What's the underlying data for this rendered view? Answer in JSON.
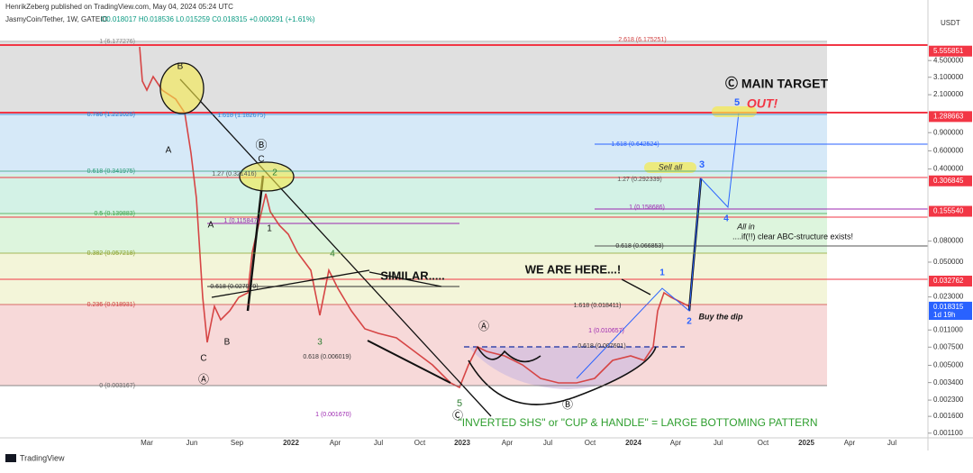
{
  "header": {
    "publisher": "HenrikZeberg published on TradingView.com, May 04, 2024 05:24 UTC",
    "symbol": "JasmyCoin/Tether, 1W, GATEIO",
    "ohlc": "O0.018017 H0.018536 L0.015259 C0.018315 +0.000291 (+1.61%)",
    "currency": "USDT"
  },
  "price_axis": [
    {
      "text": "5.555851",
      "color": "#f23645"
    },
    {
      "text": "4.500000"
    },
    {
      "text": "3.100000"
    },
    {
      "text": "2.100000"
    },
    {
      "text": "1.288663",
      "color": "#f23645"
    },
    {
      "text": "0.900000"
    },
    {
      "text": "0.600000"
    },
    {
      "text": "0.400000"
    },
    {
      "text": "0.306845",
      "color": "#f23645"
    },
    {
      "text": "0.155540",
      "color": "#f23645"
    },
    {
      "text": "0.080000"
    },
    {
      "text": "0.050000"
    },
    {
      "text": "0.032762",
      "color": "#f23645"
    },
    {
      "text": "0.023000"
    },
    {
      "text": "0.018315",
      "color": "#2962ff"
    },
    {
      "text": "0.011000"
    },
    {
      "text": "0.007500"
    },
    {
      "text": "0.005000"
    },
    {
      "text": "0.003400"
    },
    {
      "text": "0.002300"
    },
    {
      "text": "0.001600"
    },
    {
      "text": "0.001100"
    }
  ],
  "countdown": "1d 19h",
  "time_axis": [
    "Mar",
    "Jun",
    "Sep",
    "2022",
    "Apr",
    "Jul",
    "Oct",
    "2023",
    "Apr",
    "Jul",
    "Oct",
    "2024",
    "Apr",
    "Jul",
    "Oct",
    "2025",
    "Apr",
    "Jul"
  ],
  "fib_levels": [
    "1 (6.177276)",
    "0.786 (1.221025)",
    "0.618 (0.341975)",
    "0.5 (0.139883)",
    "0.382 (0.057218)",
    "0.236 (0.018931)",
    "0 (0.003167)"
  ],
  "fib_extensions": [
    "2.618 (6.175251)",
    "1.618 (1.182675)",
    "1.27 (0.321416)",
    "1 (0.115847)",
    "0.618 (0.027979)",
    "0.618 (0.006019)",
    "1 (0.001670)",
    "1.618 (0.642524)",
    "1.27 (0.292339)",
    "1 (0.158686)",
    "0.618 (0.066853)",
    "1.618 (0.018411)",
    "1 (0.010657)",
    "0.618 (0.007601)"
  ],
  "annotations": [
    "B",
    "A",
    "A",
    "B",
    "C",
    "Ⓐ",
    "Ⓑ",
    "C",
    "2",
    "1",
    "4",
    "3",
    "5",
    "Ⓒ",
    "SIMILAR.....",
    "WE ARE HERE...!",
    "Ⓐ",
    "Ⓑ",
    "\"INVERTED SHS\" or \"CUP & HANDLE\" = LARGE BOTTOMING PATTERN",
    "Ⓒ MAIN TARGET",
    "5",
    "OUT!",
    "Sell all",
    "3",
    "4",
    "All in",
    "....if(!!) clear ABC-structure exists!",
    "1",
    "2",
    "Buy the dip"
  ],
  "footer": "TradingView"
}
